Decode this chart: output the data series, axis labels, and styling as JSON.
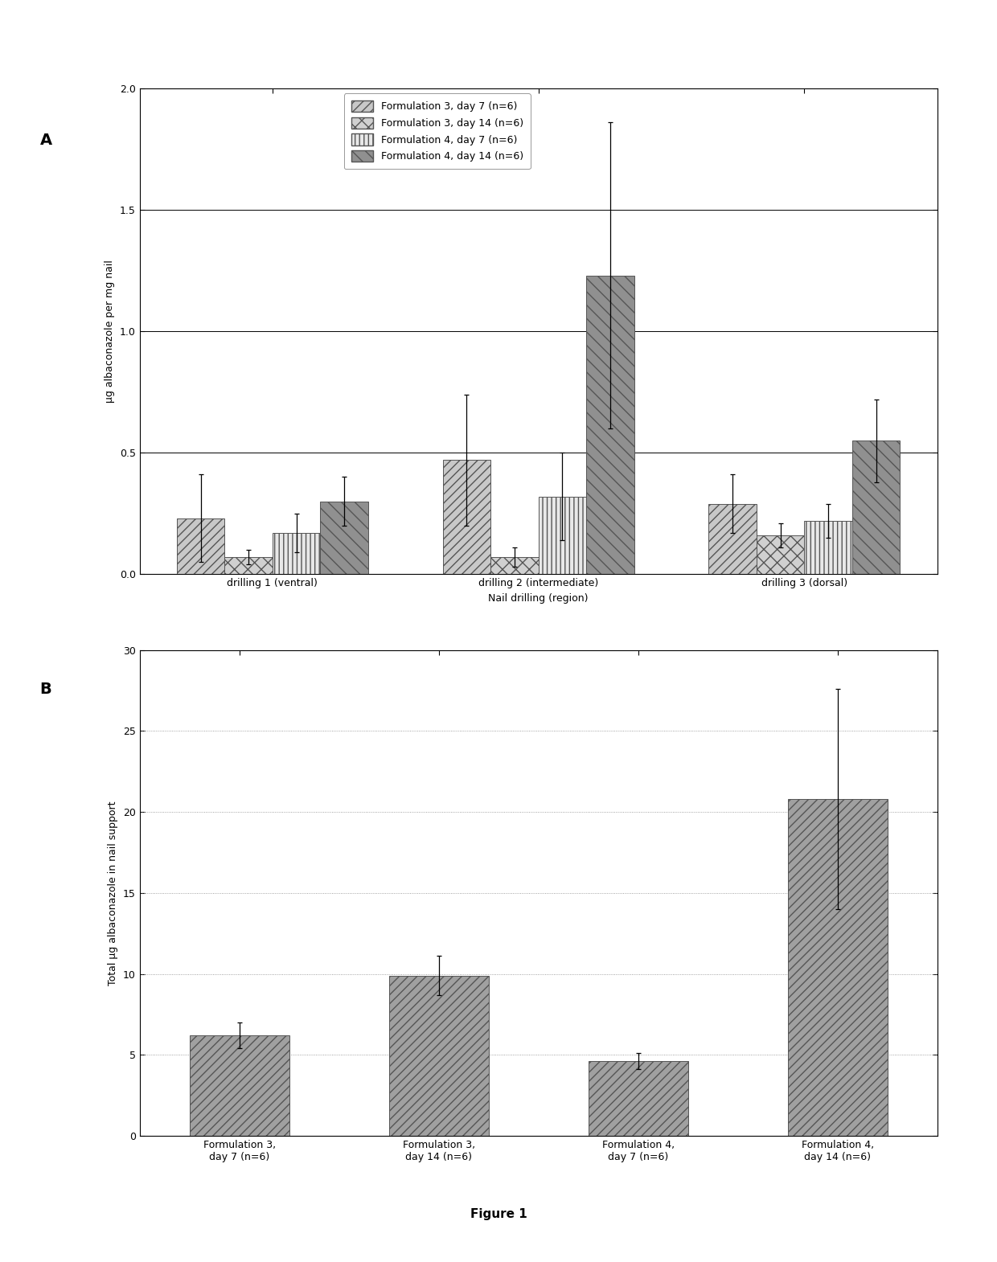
{
  "panel_A": {
    "groups": [
      "drilling 1 (ventral)",
      "drilling 2 (intermediate)",
      "drilling 3 (dorsal)"
    ],
    "series": [
      {
        "label": "Formulation 3, day 7 (n=6)",
        "values": [
          0.23,
          0.47,
          0.29
        ],
        "errors": [
          0.18,
          0.27,
          0.12
        ]
      },
      {
        "label": "Formulation 3, day 14 (n=6)",
        "values": [
          0.07,
          0.07,
          0.16
        ],
        "errors": [
          0.03,
          0.04,
          0.05
        ]
      },
      {
        "label": "Formulation 4, day 7 (n=6)",
        "values": [
          0.17,
          0.32,
          0.22
        ],
        "errors": [
          0.08,
          0.18,
          0.07
        ]
      },
      {
        "label": "Formulation 4, day 14 (n=6)",
        "values": [
          0.3,
          1.23,
          0.55
        ],
        "errors": [
          0.1,
          0.63,
          0.17
        ]
      }
    ],
    "bar_styles": [
      {
        "fc": "#c8c8c8",
        "hatch": "///",
        "ec": "#555555"
      },
      {
        "fc": "#d0d0d0",
        "hatch": "xx",
        "ec": "#555555"
      },
      {
        "fc": "#e8e8e8",
        "hatch": "|||",
        "ec": "#555555"
      },
      {
        "fc": "#909090",
        "hatch": "\\\\",
        "ec": "#555555"
      }
    ],
    "ylabel": "μg albaconazole per mg nail",
    "xlabel": "Nail drilling (region)",
    "ylim": [
      0.0,
      2.0
    ],
    "yticks": [
      0.0,
      0.5,
      1.0,
      1.5,
      2.0
    ],
    "yticklabels": [
      "0.0",
      "0.5",
      "1.0",
      "1.5",
      "2.0"
    ],
    "hlines": [
      0.5,
      1.0,
      1.5,
      2.0
    ],
    "panel_label": "A",
    "bar_width": 0.18
  },
  "panel_B": {
    "categories": [
      "Formulation 3,\nday 7 (n=6)",
      "Formulation 3,\nday 14 (n=6)",
      "Formulation 4,\nday 7 (n=6)",
      "Formulation 4,\nday 14 (n=6)"
    ],
    "values": [
      6.2,
      9.9,
      4.6,
      20.8
    ],
    "errors": [
      0.8,
      1.2,
      0.5,
      6.8
    ],
    "bar_style": {
      "fc": "#a0a0a0",
      "hatch": "///",
      "ec": "#555555"
    },
    "ylabel": "Total μg albaconazole in nail support",
    "ylim": [
      0,
      30
    ],
    "yticks": [
      0,
      5,
      10,
      15,
      20,
      25,
      30
    ],
    "yticklabels": [
      "0",
      "5",
      "10",
      "15",
      "20",
      "25",
      "30"
    ],
    "hlines": [
      5,
      10,
      15,
      20,
      25,
      30
    ],
    "panel_label": "B",
    "bar_width": 0.5
  },
  "figure_label": "Figure 1",
  "background_color": "#ffffff",
  "font_size": 9,
  "label_font_size": 9,
  "panel_label_font_size": 14
}
